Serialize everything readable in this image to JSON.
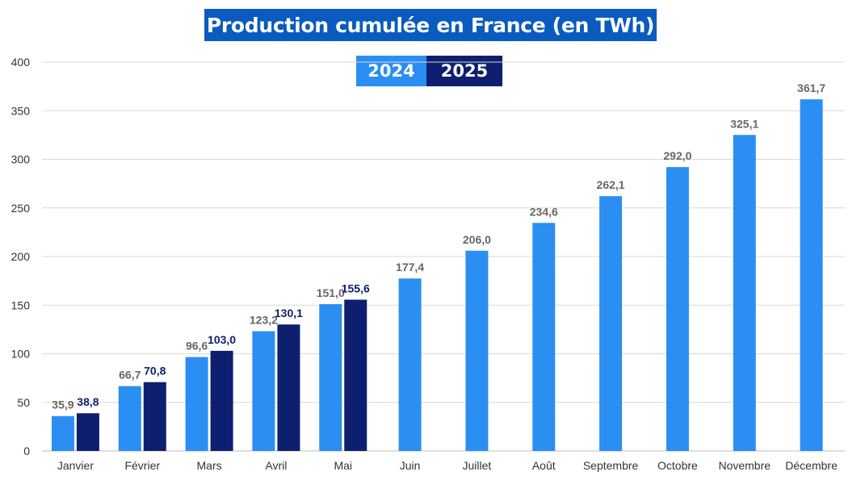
{
  "chart_data": {
    "type": "bar",
    "title": "Production cumulée en France (en TWh)",
    "categories": [
      "Janvier",
      "Février",
      "Mars",
      "Avril",
      "Mai",
      "Juin",
      "Juillet",
      "Août",
      "Septembre",
      "Octobre",
      "Novembre",
      "Décembre"
    ],
    "series": [
      {
        "name": "2024",
        "color": "#2b8ef2",
        "label_color": "#666666",
        "values": [
          35.9,
          66.7,
          96.6,
          123.2,
          151.0,
          177.4,
          206.0,
          234.6,
          262.1,
          292.0,
          325.1,
          361.7
        ],
        "labels": [
          "35,9",
          "66,7",
          "96,6",
          "123,2",
          "151,0",
          "177,4",
          "206,0",
          "234,6",
          "262,1",
          "292,0",
          "325,1",
          "361,7"
        ]
      },
      {
        "name": "2025",
        "color": "#0d1f6e",
        "label_color": "#0d1f6e",
        "values": [
          38.8,
          70.8,
          103.0,
          130.1,
          155.6,
          null,
          null,
          null,
          null,
          null,
          null,
          null
        ],
        "labels": [
          "38,8",
          "70,8",
          "103,0",
          "130,1",
          "155,6",
          null,
          null,
          null,
          null,
          null,
          null,
          null
        ]
      }
    ],
    "ylim": [
      0,
      400
    ],
    "yticks": [
      0,
      50,
      100,
      150,
      200,
      250,
      300,
      350,
      400
    ],
    "grid": true,
    "legend_position": "top-center",
    "xlabel": "",
    "ylabel": ""
  }
}
